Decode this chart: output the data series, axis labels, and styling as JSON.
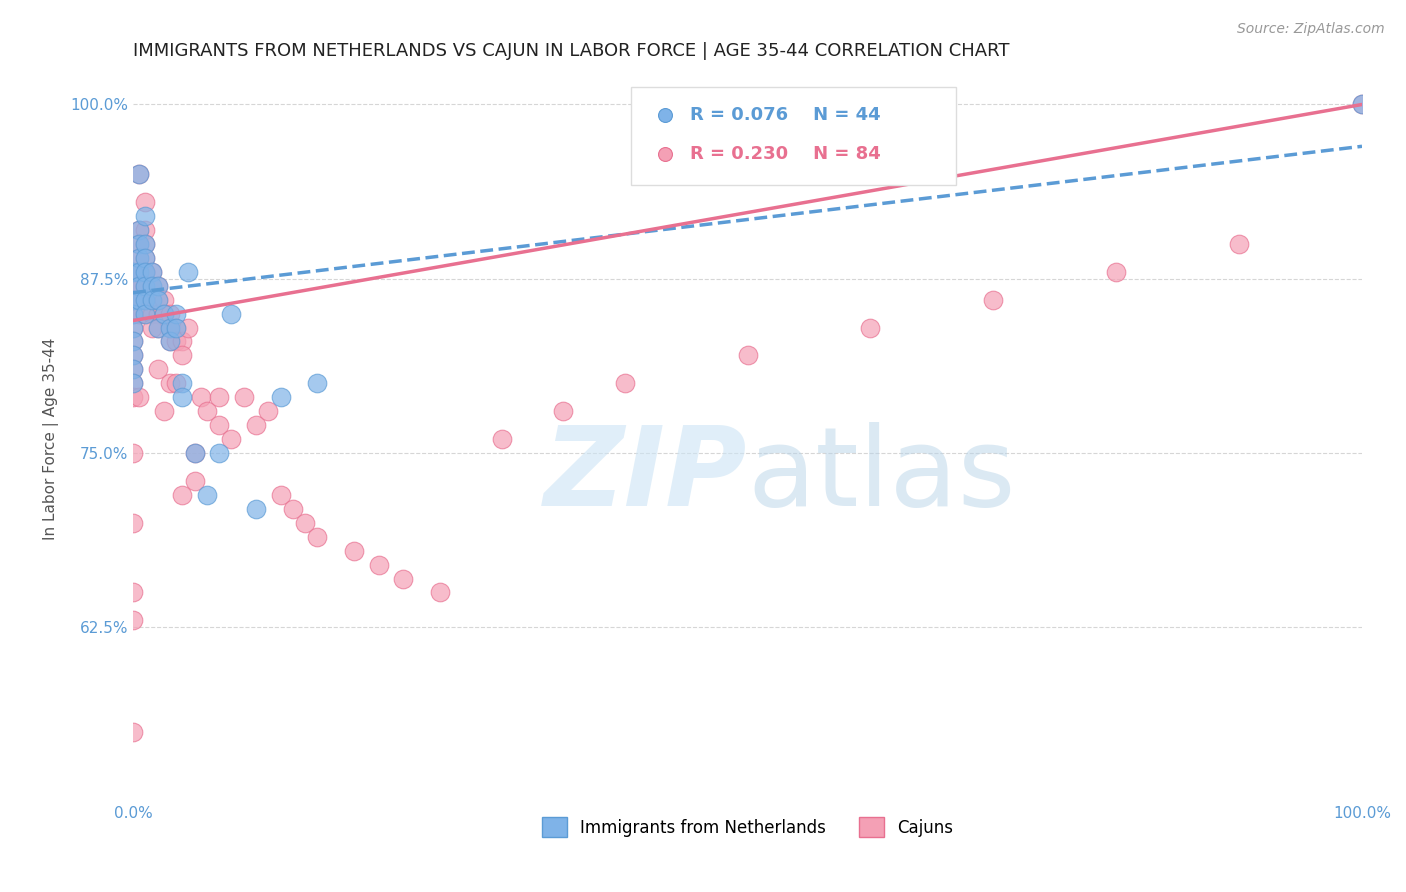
{
  "title": "IMMIGRANTS FROM NETHERLANDS VS CAJUN IN LABOR FORCE | AGE 35-44 CORRELATION CHART",
  "source": "Source: ZipAtlas.com",
  "ylabel": "In Labor Force | Age 35-44",
  "xlim": [
    0.0,
    1.0
  ],
  "ylim": [
    0.5,
    1.02
  ],
  "yticks": [
    0.625,
    0.75,
    0.875,
    1.0
  ],
  "ytick_labels": [
    "62.5%",
    "75.0%",
    "87.5%",
    "100.0%"
  ],
  "xticks": [
    0.0,
    0.2,
    0.4,
    0.6,
    0.8,
    1.0
  ],
  "xtick_labels": [
    "0.0%",
    "",
    "",
    "",
    "",
    "100.0%"
  ],
  "color_netherlands": "#7fb3e8",
  "color_cajun": "#f4a0b5",
  "line_color_netherlands": "#5b9bd5",
  "line_color_cajun": "#e87090",
  "R_netherlands": 0.076,
  "N_netherlands": 44,
  "R_cajun": 0.23,
  "N_cajun": 84,
  "legend_label_netherlands": "Immigrants from Netherlands",
  "legend_label_cajun": "Cajuns",
  "background_color": "#ffffff",
  "grid_color": "#cccccc",
  "netherlands_x": [
    0.0,
    0.0,
    0.0,
    0.0,
    0.0,
    0.0,
    0.0,
    0.0,
    0.005,
    0.005,
    0.005,
    0.005,
    0.005,
    0.005,
    0.005,
    0.01,
    0.01,
    0.01,
    0.01,
    0.01,
    0.01,
    0.01,
    0.015,
    0.015,
    0.015,
    0.02,
    0.02,
    0.02,
    0.025,
    0.03,
    0.03,
    0.035,
    0.035,
    0.04,
    0.04,
    0.045,
    0.05,
    0.06,
    0.07,
    0.08,
    0.1,
    0.12,
    0.15,
    1.0
  ],
  "netherlands_y": [
    0.88,
    0.86,
    0.85,
    0.84,
    0.83,
    0.82,
    0.81,
    0.8,
    0.95,
    0.91,
    0.9,
    0.89,
    0.88,
    0.87,
    0.86,
    0.92,
    0.9,
    0.89,
    0.88,
    0.87,
    0.86,
    0.85,
    0.88,
    0.87,
    0.86,
    0.87,
    0.86,
    0.84,
    0.85,
    0.84,
    0.83,
    0.85,
    0.84,
    0.8,
    0.79,
    0.88,
    0.75,
    0.72,
    0.75,
    0.85,
    0.71,
    0.79,
    0.8,
    1.0
  ],
  "cajun_x": [
    0.0,
    0.0,
    0.0,
    0.0,
    0.0,
    0.0,
    0.0,
    0.0,
    0.0,
    0.0,
    0.005,
    0.005,
    0.005,
    0.005,
    0.005,
    0.005,
    0.005,
    0.005,
    0.01,
    0.01,
    0.01,
    0.01,
    0.01,
    0.01,
    0.01,
    0.01,
    0.015,
    0.015,
    0.015,
    0.015,
    0.02,
    0.02,
    0.02,
    0.02,
    0.025,
    0.025,
    0.03,
    0.03,
    0.03,
    0.035,
    0.035,
    0.04,
    0.04,
    0.045,
    0.05,
    0.055,
    0.06,
    0.07,
    0.08,
    0.09,
    0.1,
    0.11,
    0.12,
    0.13,
    0.14,
    0.15,
    0.18,
    0.2,
    0.22,
    0.25,
    0.3,
    0.35,
    0.4,
    0.5,
    0.6,
    0.7,
    0.8,
    0.9,
    1.0,
    0.0,
    0.0,
    0.0,
    0.0,
    0.0,
    0.005,
    0.01,
    0.015,
    0.02,
    0.025,
    0.03,
    0.035,
    0.04,
    0.05,
    0.07
  ],
  "cajun_y": [
    0.88,
    0.87,
    0.86,
    0.85,
    0.84,
    0.83,
    0.82,
    0.81,
    0.8,
    0.79,
    0.95,
    0.91,
    0.9,
    0.89,
    0.88,
    0.87,
    0.86,
    0.85,
    0.93,
    0.91,
    0.9,
    0.89,
    0.88,
    0.87,
    0.86,
    0.85,
    0.88,
    0.87,
    0.86,
    0.85,
    0.87,
    0.86,
    0.85,
    0.84,
    0.86,
    0.85,
    0.85,
    0.84,
    0.83,
    0.84,
    0.83,
    0.83,
    0.82,
    0.84,
    0.73,
    0.79,
    0.78,
    0.77,
    0.76,
    0.79,
    0.77,
    0.78,
    0.72,
    0.71,
    0.7,
    0.69,
    0.68,
    0.67,
    0.66,
    0.65,
    0.76,
    0.78,
    0.8,
    0.82,
    0.84,
    0.86,
    0.88,
    0.9,
    1.0,
    0.75,
    0.7,
    0.65,
    0.63,
    0.55,
    0.79,
    0.88,
    0.84,
    0.81,
    0.78,
    0.8,
    0.8,
    0.72,
    0.75,
    0.79
  ],
  "trendline_nl_start": 0.865,
  "trendline_nl_end": 0.97,
  "trendline_cj_start": 0.845,
  "trendline_cj_end": 1.0
}
